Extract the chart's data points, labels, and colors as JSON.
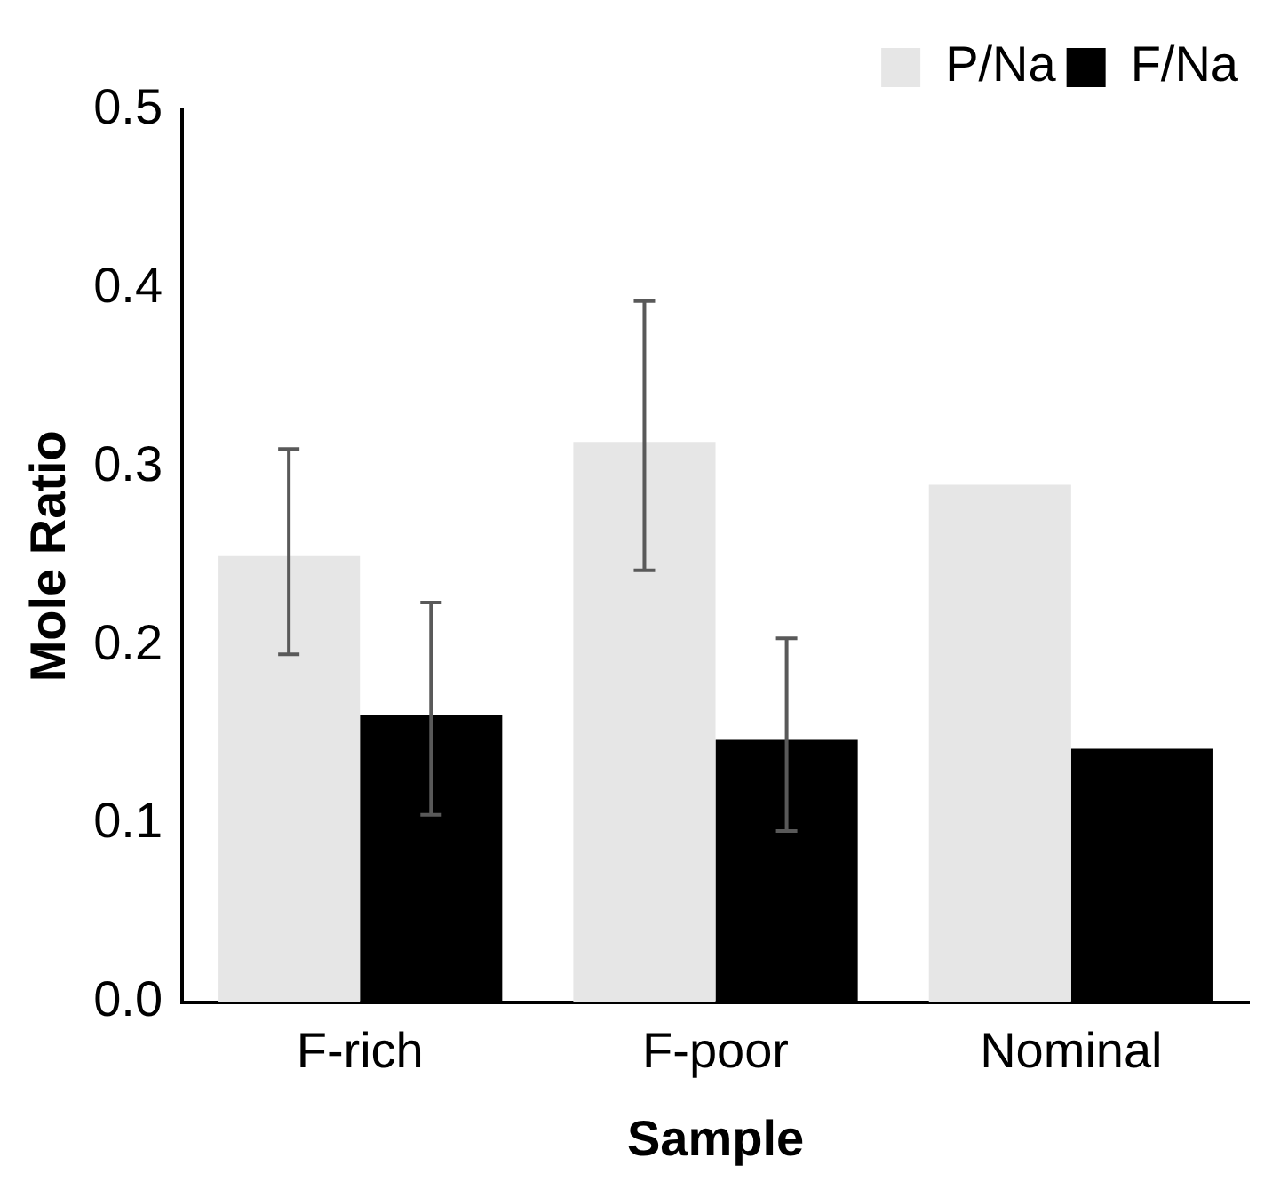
{
  "chart_data": {
    "type": "bar",
    "xlabel": "Sample",
    "ylabel": "Mole Ratio",
    "categories": [
      "F-rich",
      "F-poor",
      "Nominal"
    ],
    "series": [
      {
        "name": "P/Na",
        "color": "#e6e6e6",
        "values": [
          0.25,
          0.314,
          0.29
        ],
        "errors": [
          [
            0.195,
            0.31
          ],
          [
            0.242,
            0.393
          ],
          null
        ]
      },
      {
        "name": "F/Na",
        "color": "#000000",
        "values": [
          0.161,
          0.147,
          0.142
        ],
        "errors": [
          [
            0.105,
            0.224
          ],
          [
            0.096,
            0.204
          ],
          null
        ]
      }
    ],
    "ylim": [
      0,
      0.5
    ],
    "yticks": [
      {
        "value": 0,
        "label": "0.0"
      },
      0.1,
      0.2,
      0.3,
      0.4,
      0.5
    ],
    "grid": false,
    "legend": "top right"
  }
}
